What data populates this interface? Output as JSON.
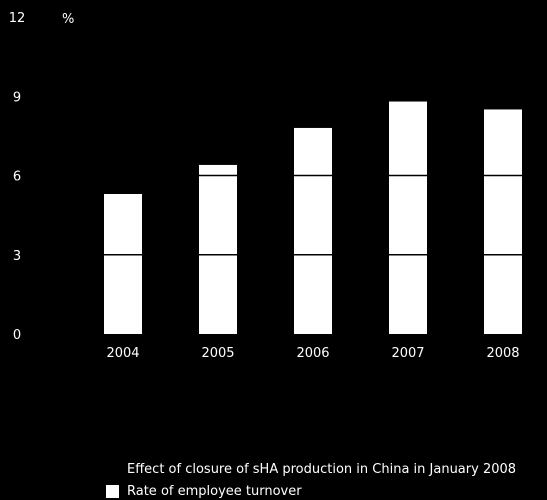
{
  "chart_data": {
    "type": "bar",
    "unit_label": "%",
    "categories": [
      "2004",
      "2005",
      "2006",
      "2007",
      "2008"
    ],
    "series": [
      {
        "name": "Rate of employee turnover",
        "values": [
          5.3,
          6.4,
          7.8,
          8.8,
          8.5
        ]
      }
    ],
    "ylim": [
      0,
      12
    ],
    "yticks": [
      0,
      3,
      6,
      9,
      12
    ],
    "grid": true,
    "bar_color": "#ffffff",
    "background": "#000000",
    "legend": {
      "placement": "bottom",
      "entries": [
        "Effect of closure of sHA production in China in January 2008",
        "Rate of employee turnover"
      ]
    }
  }
}
